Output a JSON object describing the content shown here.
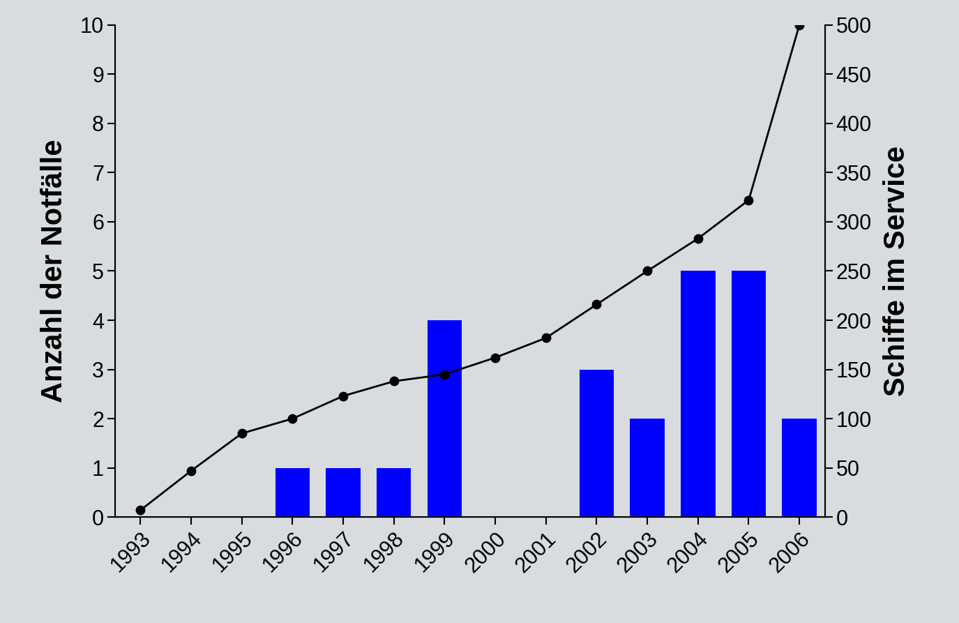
{
  "chart_data": {
    "type": "bar",
    "categories": [
      "1993",
      "1994",
      "1995",
      "1996",
      "1997",
      "1998",
      "1999",
      "2000",
      "2001",
      "2002",
      "2003",
      "2004",
      "2005",
      "2006"
    ],
    "y_label": "Anzahl der Notfälle",
    "y2_label": "Schiffe im Service",
    "ylim": [
      0,
      10
    ],
    "yticks": [
      0,
      1,
      2,
      3,
      4,
      5,
      6,
      7,
      8,
      9,
      10
    ],
    "y2lim": [
      0,
      500
    ],
    "y2ticks": [
      0,
      50,
      100,
      150,
      200,
      250,
      300,
      350,
      400,
      450,
      500
    ],
    "grid": false,
    "series": [
      {
        "type": "bar",
        "color": "#0000ff",
        "values": [
          0,
          0,
          0,
          1,
          1,
          1,
          4,
          0,
          0,
          3,
          2,
          5,
          5,
          2
        ]
      },
      {
        "type": "line",
        "axis": "y2",
        "color": "#000000",
        "marker": "o",
        "line_style": "solid",
        "values": [
          7,
          47,
          85,
          100,
          123,
          138,
          145,
          162,
          182,
          216,
          250,
          283,
          322,
          500
        ]
      }
    ]
  }
}
